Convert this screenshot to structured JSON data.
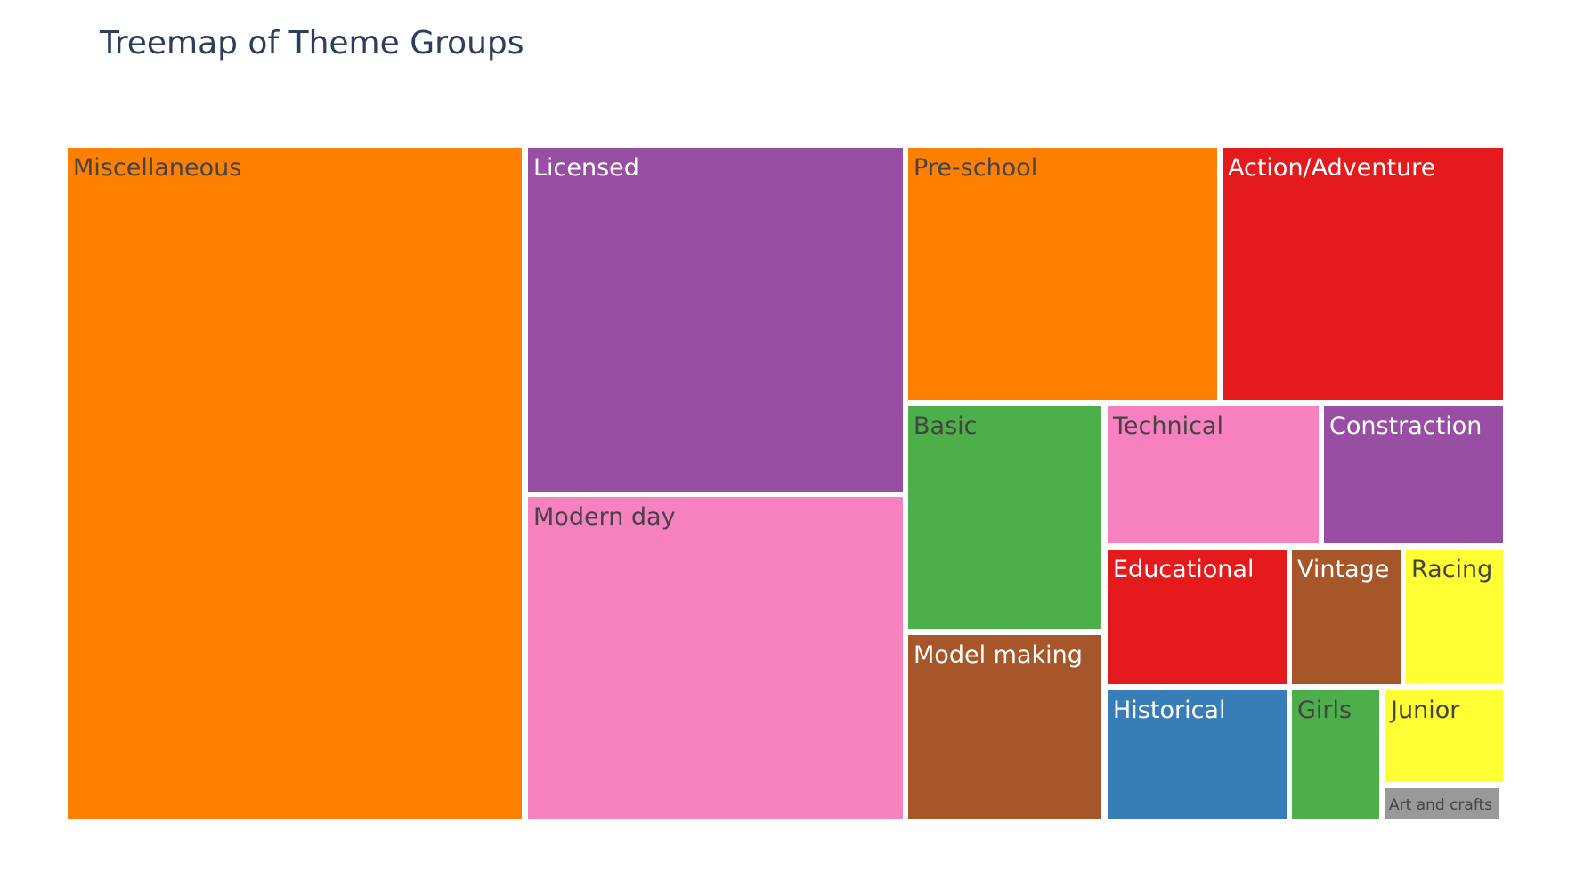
{
  "chart_data": {
    "type": "treemap",
    "title": "Treemap of Theme Groups",
    "items": [
      {
        "label": "Miscellaneous",
        "value": 106,
        "color": "#ff7f00",
        "text_color": "#444444"
      },
      {
        "label": "Licensed",
        "value": 55,
        "color": "#984ea3",
        "text_color": "#ffffff"
      },
      {
        "label": "Modern day",
        "value": 52,
        "color": "#f781bf",
        "text_color": "#444444"
      },
      {
        "label": "Pre-school",
        "value": 42,
        "color": "#ff7f00",
        "text_color": "#444444"
      },
      {
        "label": "Action/Adventure",
        "value": 38,
        "color": "#e41a1c",
        "text_color": "#ffffff"
      },
      {
        "label": "Basic",
        "value": 24,
        "color": "#4daf4a",
        "text_color": "#444444"
      },
      {
        "label": "Model making",
        "value": 14,
        "color": "#a65628",
        "text_color": "#ffffff"
      },
      {
        "label": "Technical",
        "value": 16,
        "color": "#f781bf",
        "text_color": "#444444"
      },
      {
        "label": "Constraction",
        "value": 13,
        "color": "#984ea3",
        "text_color": "#ffffff"
      },
      {
        "label": "Educational",
        "value": 13,
        "color": "#e41a1c",
        "text_color": "#ffffff"
      },
      {
        "label": "Vintage",
        "value": 8,
        "color": "#a65628",
        "text_color": "#ffffff"
      },
      {
        "label": "Racing",
        "value": 7,
        "color": "#ffff33",
        "text_color": "#444444"
      },
      {
        "label": "Historical",
        "value": 12,
        "color": "#377eb8",
        "text_color": "#ffffff"
      },
      {
        "label": "Girls",
        "value": 6,
        "color": "#4daf4a",
        "text_color": "#444444"
      },
      {
        "label": "Junior",
        "value": 5,
        "color": "#ffff33",
        "text_color": "#444444"
      },
      {
        "label": "Art and crafts",
        "value": 1,
        "color": "#999999",
        "text_color": "#444444"
      }
    ]
  }
}
